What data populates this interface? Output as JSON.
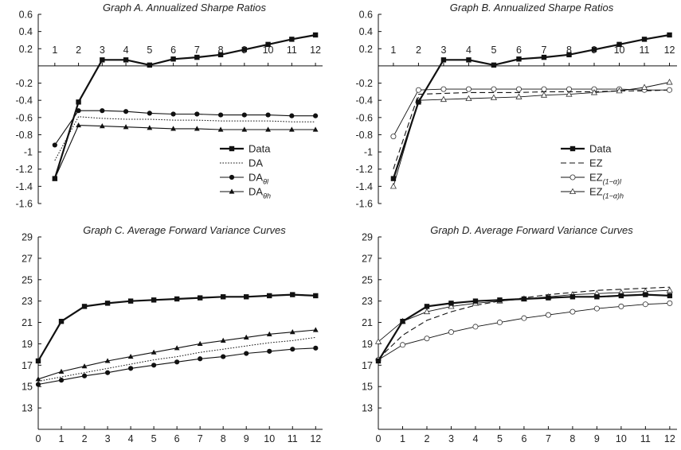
{
  "chart_data": [
    {
      "id": "A",
      "type": "line",
      "title": "Graph A. Annualized Sharpe Ratios",
      "xlabel": "",
      "ylabel": "",
      "x": [
        1,
        2,
        3,
        4,
        5,
        6,
        7,
        8,
        9,
        10,
        11,
        12
      ],
      "xticks": [
        "1",
        "2",
        "3",
        "4",
        "5",
        "6",
        "7",
        "8",
        "9",
        "10",
        "11",
        "12"
      ],
      "ylim": [
        -1.6,
        0.6
      ],
      "yticks": [
        "0.6",
        "0.4",
        "0.2",
        "-0.2",
        "-0.4",
        "-0.6",
        "-0.8",
        "-1",
        "-1.2",
        "-1.4",
        "-1.6"
      ],
      "ytick_values": [
        0.6,
        0.4,
        0.2,
        -0.2,
        -0.4,
        -0.6,
        -0.8,
        -1,
        -1.2,
        -1.4,
        -1.6
      ],
      "x_axis_at_zero": true,
      "legend_position": "lower-right",
      "series": [
        {
          "name": "Data",
          "style": "solid-thick",
          "marker": "square",
          "values": [
            -1.31,
            -0.42,
            0.07,
            0.07,
            0.01,
            0.08,
            0.1,
            0.13,
            0.19,
            0.25,
            0.31,
            0.36
          ]
        },
        {
          "name": "DA",
          "style": "dotted",
          "marker": "none",
          "values": [
            -1.1,
            -0.59,
            -0.61,
            -0.62,
            -0.62,
            -0.63,
            -0.63,
            -0.64,
            -0.64,
            -0.64,
            -0.65,
            -0.65
          ]
        },
        {
          "name": "DA",
          "sub": "θl",
          "style": "solid",
          "marker": "circle-filled",
          "values": [
            -0.92,
            -0.52,
            -0.52,
            -0.53,
            -0.55,
            -0.56,
            -0.56,
            -0.57,
            -0.57,
            -0.57,
            -0.58,
            -0.58
          ]
        },
        {
          "name": "DA",
          "sub": "θh",
          "style": "solid",
          "marker": "triangle-filled",
          "values": [
            -1.31,
            -0.69,
            -0.7,
            -0.71,
            -0.72,
            -0.73,
            -0.73,
            -0.74,
            -0.74,
            -0.74,
            -0.74,
            -0.74
          ]
        }
      ]
    },
    {
      "id": "B",
      "type": "line",
      "title": "Graph B. Annualized Sharpe Ratios",
      "xlabel": "",
      "ylabel": "",
      "x": [
        1,
        2,
        3,
        4,
        5,
        6,
        7,
        8,
        9,
        10,
        11,
        12
      ],
      "xticks": [
        "1",
        "2",
        "3",
        "4",
        "5",
        "6",
        "7",
        "8",
        "9",
        "10",
        "11",
        "12"
      ],
      "ylim": [
        -1.6,
        0.6
      ],
      "yticks": [
        "0.6",
        "0.4",
        "0.2",
        "-0.2",
        "-0.4",
        "-0.6",
        "-0.8",
        "-1",
        "-1.2",
        "-1.4",
        "-1.6"
      ],
      "ytick_values": [
        0.6,
        0.4,
        0.2,
        -0.2,
        -0.4,
        -0.6,
        -0.8,
        -1,
        -1.2,
        -1.4,
        -1.6
      ],
      "x_axis_at_zero": true,
      "legend_position": "lower-right",
      "series": [
        {
          "name": "Data",
          "style": "solid-thick",
          "marker": "square",
          "values": [
            -1.31,
            -0.42,
            0.07,
            0.07,
            0.01,
            0.08,
            0.1,
            0.13,
            0.19,
            0.25,
            0.31,
            0.36
          ]
        },
        {
          "name": "EZ",
          "style": "dashed",
          "marker": "none",
          "values": [
            -1.2,
            -0.33,
            -0.32,
            -0.31,
            -0.31,
            -0.31,
            -0.3,
            -0.3,
            -0.3,
            -0.29,
            -0.29,
            -0.28
          ]
        },
        {
          "name": "EZ",
          "sub": "(1−α)l",
          "style": "solid-thin",
          "marker": "circle-open",
          "values": [
            -0.82,
            -0.28,
            -0.27,
            -0.27,
            -0.27,
            -0.27,
            -0.27,
            -0.27,
            -0.27,
            -0.27,
            -0.28,
            -0.28
          ]
        },
        {
          "name": "EZ",
          "sub": "(1−α)h",
          "style": "solid-thin",
          "marker": "triangle-open",
          "values": [
            -1.4,
            -0.4,
            -0.39,
            -0.38,
            -0.37,
            -0.36,
            -0.34,
            -0.33,
            -0.31,
            -0.29,
            -0.25,
            -0.19
          ]
        }
      ]
    },
    {
      "id": "C",
      "type": "line",
      "title": "Graph C. Average Forward Variance Curves",
      "xlabel": "",
      "ylabel": "",
      "x": [
        0,
        1,
        2,
        3,
        4,
        5,
        6,
        7,
        8,
        9,
        10,
        11,
        12
      ],
      "xticks": [
        "0",
        "1",
        "2",
        "3",
        "4",
        "5",
        "6",
        "7",
        "8",
        "9",
        "10",
        "11",
        "12"
      ],
      "ylim": [
        11,
        29
      ],
      "yticks": [
        "29",
        "27",
        "25",
        "23",
        "21",
        "19",
        "17",
        "15",
        "13"
      ],
      "ytick_values": [
        29,
        27,
        25,
        23,
        21,
        19,
        17,
        15,
        13
      ],
      "x_axis_at_zero": false,
      "legend_position": "none",
      "series": [
        {
          "name": "Data",
          "style": "solid-thick",
          "marker": "square",
          "values": [
            17.4,
            21.1,
            22.5,
            22.8,
            23.0,
            23.1,
            23.2,
            23.3,
            23.4,
            23.4,
            23.5,
            23.6,
            23.5
          ]
        },
        {
          "name": "DA",
          "style": "dotted",
          "marker": "none",
          "values": [
            15.5,
            15.9,
            16.3,
            16.7,
            17.1,
            17.5,
            17.8,
            18.2,
            18.5,
            18.8,
            19.1,
            19.3,
            19.6
          ]
        },
        {
          "name": "DA",
          "sub": "θl",
          "style": "solid",
          "marker": "circle-filled",
          "values": [
            15.2,
            15.6,
            16.0,
            16.3,
            16.7,
            17.0,
            17.3,
            17.6,
            17.8,
            18.1,
            18.3,
            18.5,
            18.6
          ]
        },
        {
          "name": "DA",
          "sub": "θh",
          "style": "solid",
          "marker": "triangle-filled",
          "values": [
            15.7,
            16.4,
            16.9,
            17.4,
            17.8,
            18.2,
            18.6,
            19.0,
            19.3,
            19.6,
            19.9,
            20.1,
            20.3
          ]
        }
      ]
    },
    {
      "id": "D",
      "type": "line",
      "title": "Graph D. Average Forward Variance Curves",
      "xlabel": "",
      "ylabel": "",
      "x": [
        0,
        1,
        2,
        3,
        4,
        5,
        6,
        7,
        8,
        9,
        10,
        11,
        12
      ],
      "xticks": [
        "0",
        "1",
        "2",
        "3",
        "4",
        "5",
        "6",
        "7",
        "8",
        "9",
        "10",
        "11",
        "12"
      ],
      "ylim": [
        11,
        29
      ],
      "yticks": [
        "29",
        "27",
        "25",
        "23",
        "21",
        "19",
        "17",
        "15",
        "13"
      ],
      "ytick_values": [
        29,
        27,
        25,
        23,
        21,
        19,
        17,
        15,
        13
      ],
      "x_axis_at_zero": false,
      "legend_position": "none",
      "series": [
        {
          "name": "Data",
          "style": "solid-thick",
          "marker": "square",
          "values": [
            17.4,
            21.1,
            22.5,
            22.8,
            23.0,
            23.1,
            23.2,
            23.3,
            23.4,
            23.4,
            23.5,
            23.6,
            23.5
          ]
        },
        {
          "name": "EZ",
          "style": "dashed",
          "marker": "none",
          "values": [
            17.6,
            19.8,
            21.2,
            22.0,
            22.6,
            23.0,
            23.3,
            23.6,
            23.8,
            24.0,
            24.1,
            24.2,
            24.3
          ]
        },
        {
          "name": "EZ",
          "sub": "(1−α)l",
          "style": "solid-thin",
          "marker": "circle-open",
          "values": [
            17.5,
            18.9,
            19.5,
            20.1,
            20.6,
            21.0,
            21.4,
            21.7,
            22.0,
            22.3,
            22.5,
            22.7,
            22.8
          ]
        },
        {
          "name": "EZ",
          "sub": "(1−α)h",
          "style": "solid-thin",
          "marker": "triangle-open",
          "values": [
            19.2,
            21.1,
            22.0,
            22.5,
            22.8,
            23.0,
            23.2,
            23.4,
            23.6,
            23.7,
            23.8,
            23.9,
            24.0
          ]
        }
      ]
    }
  ]
}
